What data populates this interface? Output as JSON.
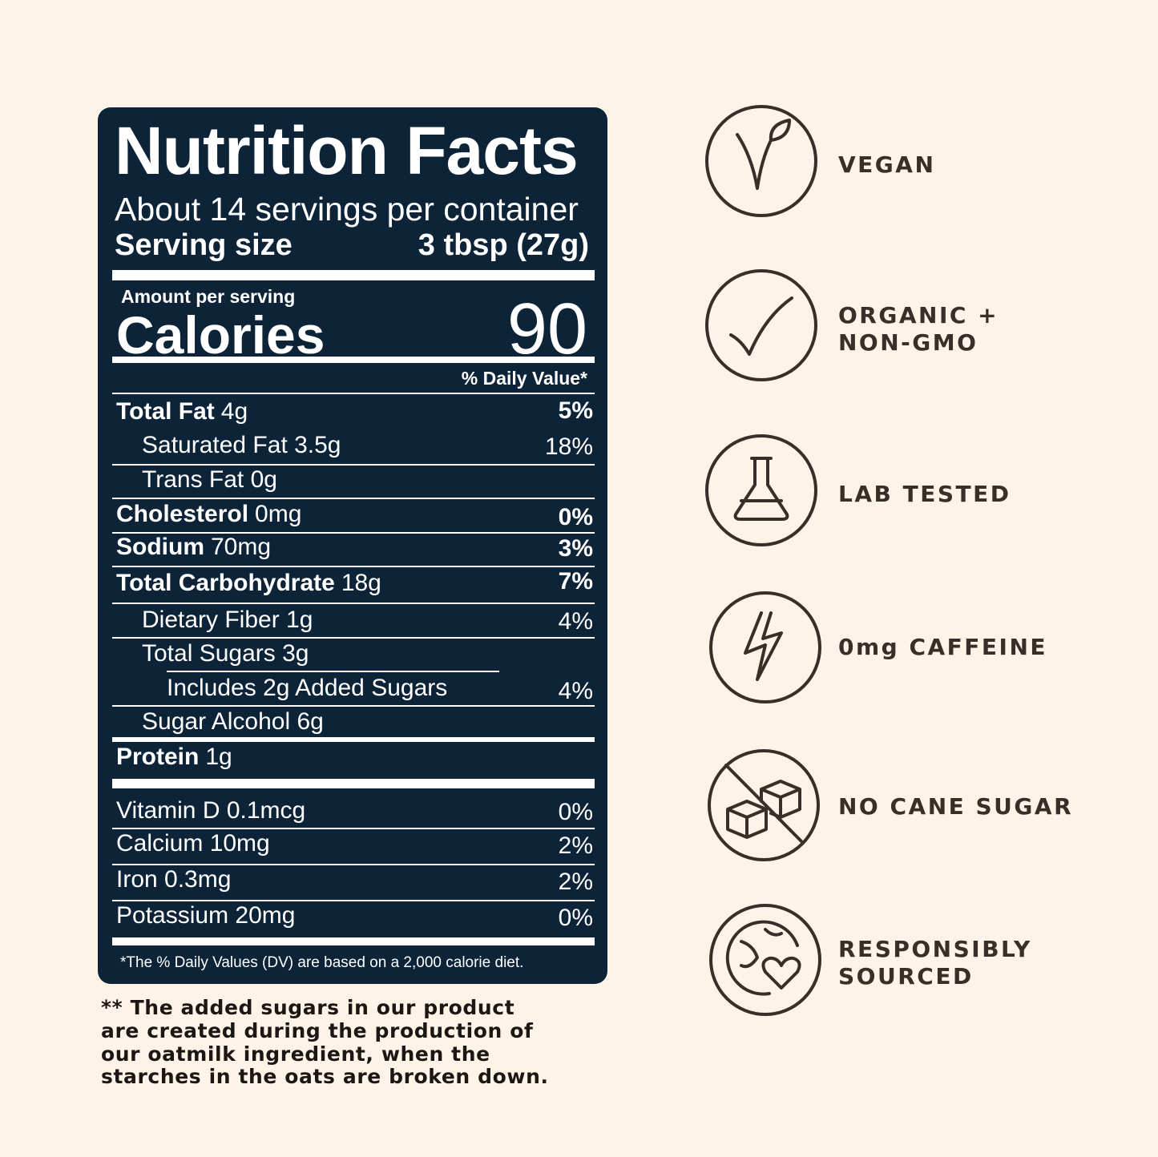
{
  "nutrition": {
    "title": "Nutrition Facts",
    "servings": "About 14 servings per container",
    "serving_size_label": "Serving size",
    "serving_size_value": "3 tbsp (27g)",
    "amount_per_serving": "Amount per serving",
    "calories_label": "Calories",
    "calories_value": "90",
    "dv_header": "% Daily Value*",
    "rows": [
      {
        "nutrient": "Total Fat",
        "amount": "4g",
        "dv": "5%"
      },
      {
        "label": "Saturated Fat 3.5g",
        "dv": "18%"
      },
      {
        "label": "Trans Fat 0g"
      },
      {
        "nutrient": "Cholesterol",
        "amount": "0mg",
        "dv": "0%"
      },
      {
        "nutrient": "Sodium",
        "amount": "70mg",
        "dv": "3%"
      },
      {
        "nutrient": "Total Carbohydrate",
        "amount": "18g",
        "dv": "7%"
      },
      {
        "label": "Dietary Fiber 1g",
        "dv": "4%"
      },
      {
        "label": "Total Sugars 3g"
      },
      {
        "label": "Includes 2g Added Sugars",
        "dv": "4%"
      },
      {
        "label": "Sugar Alcohol 6g"
      },
      {
        "nutrient": "Protein",
        "amount": "1g"
      },
      {
        "label": "Vitamin D 0.1mcg",
        "dv": "0%"
      },
      {
        "label": "Calcium 10mg",
        "dv": "2%"
      },
      {
        "label": "Iron 0.3mg",
        "dv": "2%"
      },
      {
        "label": "Potassium 20mg",
        "dv": "0%"
      }
    ],
    "footnote": "*The % Daily Values (DV) are based on a 2,000 calorie diet."
  },
  "note": {
    "lines": [
      "** The added sugars in our product",
      "are created during the production of",
      "our oatmilk ingredient, when the",
      "starches in the oats are broken down."
    ]
  },
  "badges": [
    {
      "lines": [
        "VEGAN"
      ]
    },
    {
      "lines": [
        "ORGANIC +",
        "NON-GMO"
      ]
    },
    {
      "lines": [
        "LAB TESTED"
      ]
    },
    {
      "lines": [
        "0mg CAFFEINE"
      ]
    },
    {
      "lines": [
        "NO CANE SUGAR"
      ]
    },
    {
      "lines": [
        "RESPONSIBLY",
        "SOURCED"
      ]
    }
  ]
}
